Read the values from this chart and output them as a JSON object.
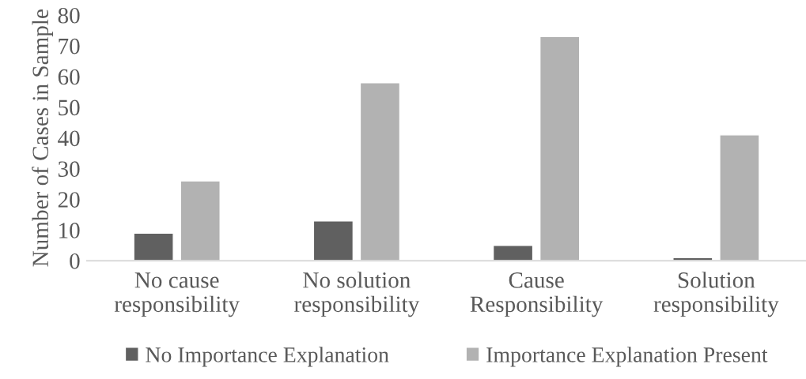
{
  "chart_data": {
    "type": "bar",
    "ylabel": "Number of Cases in Sample",
    "categories": [
      "No cause\nresponsibility",
      "No solution\nresponsibility",
      "Cause\nResponsibility",
      "Solution\nresponsibility"
    ],
    "series": [
      {
        "name": "No Importance Explanation",
        "color": "#606060",
        "values": [
          9,
          13,
          5,
          1
        ]
      },
      {
        "name": "Importance Explanation Present",
        "color": "#b2b2b2",
        "values": [
          26,
          58,
          73,
          41
        ]
      }
    ],
    "ylim": [
      0,
      80
    ],
    "yticks": [
      0,
      10,
      20,
      30,
      40,
      50,
      60,
      70,
      80
    ],
    "grid": false,
    "legend": "bottom"
  }
}
